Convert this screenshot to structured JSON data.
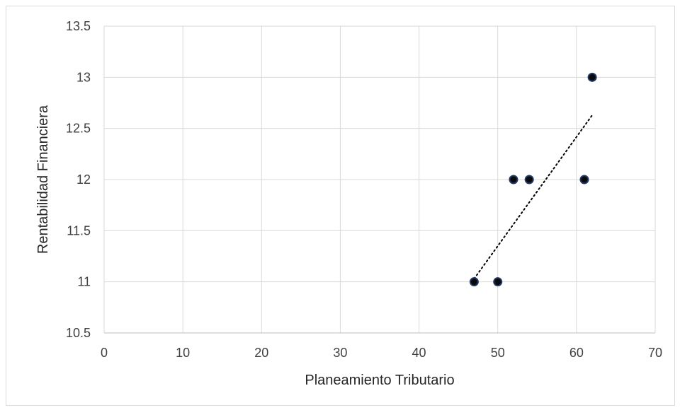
{
  "chart_data": {
    "type": "scatter",
    "title": "",
    "xlabel": "Planeamiento Tributario",
    "ylabel": "Rentabilidad Financiera",
    "xlim": [
      0,
      70
    ],
    "ylim": [
      10.5,
      13.5
    ],
    "x_ticks": [
      0,
      10,
      20,
      30,
      40,
      50,
      60,
      70
    ],
    "y_ticks": [
      10.5,
      11,
      11.5,
      12,
      12.5,
      13,
      13.5
    ],
    "x_tick_labels": [
      "0",
      "10",
      "20",
      "30",
      "40",
      "50",
      "60",
      "70"
    ],
    "y_tick_labels": [
      "10.5",
      "11",
      "11.5",
      "12",
      "12.5",
      "13",
      "13.5"
    ],
    "grid": true,
    "legend": "none",
    "points": [
      {
        "x": 47,
        "y": 11
      },
      {
        "x": 50,
        "y": 11
      },
      {
        "x": 52,
        "y": 12
      },
      {
        "x": 54,
        "y": 12
      },
      {
        "x": 61,
        "y": 12
      },
      {
        "x": 62,
        "y": 13
      }
    ],
    "trendline": {
      "type": "linear",
      "style": "dotted",
      "x_start": 47,
      "y_start": 11.03,
      "x_end": 62,
      "y_end": 12.63
    },
    "colors": {
      "marker_fill": "#0a0a0a",
      "marker_stroke": "#1f3864",
      "gridline": "#d9d9d9",
      "trendline": "#000000"
    }
  }
}
